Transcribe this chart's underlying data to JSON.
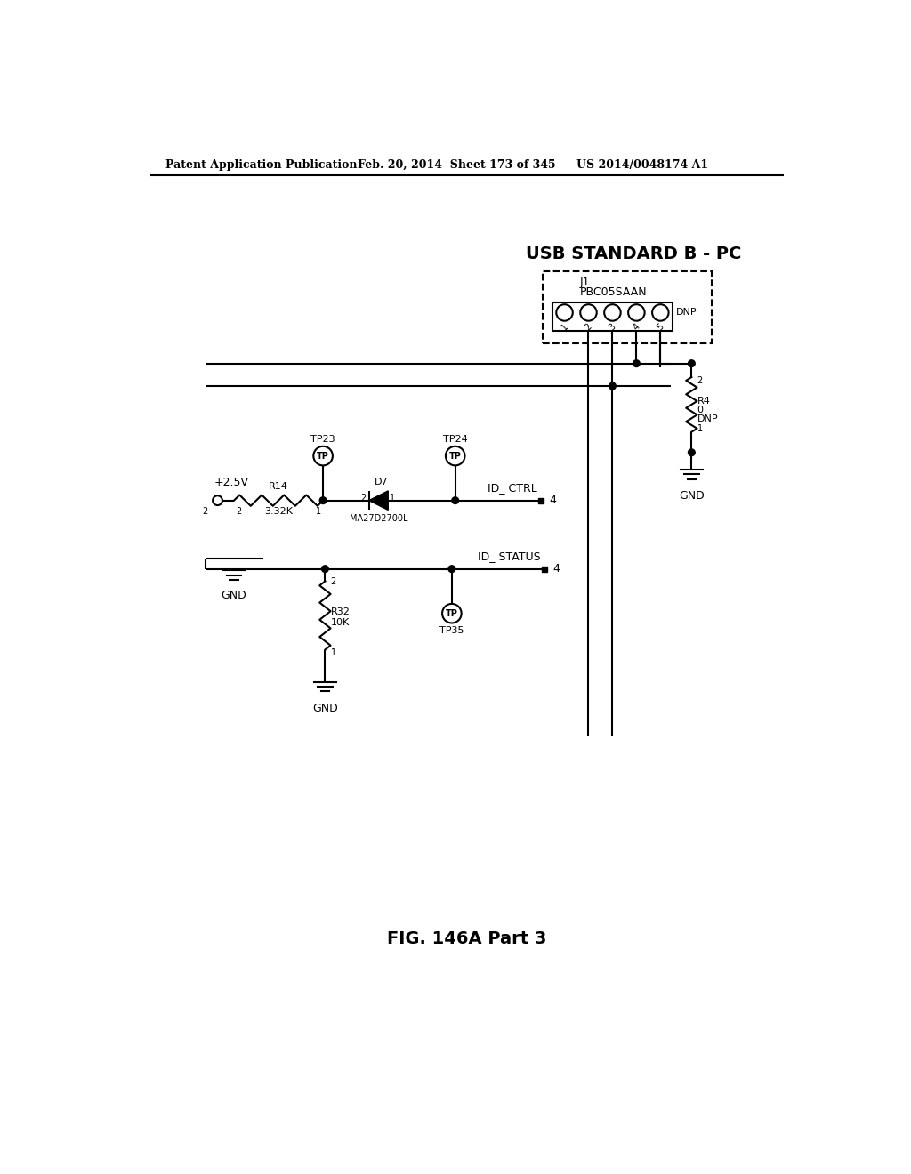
{
  "header_left": "Patent Application Publication",
  "header_middle": "Feb. 20, 2014  Sheet 173 of 345",
  "header_right": "US 2014/0048174 A1",
  "title_usb": "USB STANDARD B - PC",
  "j1_label": "J1",
  "j1_part": "PBC05SAAN",
  "j1_dnp": "DNP",
  "r4_label": "R4",
  "r4_value": "0",
  "r4_dnp": "DNP",
  "r14_label": "R14",
  "r14_value": "3.32K",
  "r32_label": "R32",
  "r32_value": "10K",
  "d7_label": "D7",
  "d7_part": "MA27D2700L",
  "tp23_label": "TP23",
  "tp24_label": "TP24",
  "tp35_label": "TP35",
  "vcc_label": "+2.5V",
  "id_ctrl_label": "ID_ CTRL",
  "id_status_label": "ID_ STATUS",
  "fig_label": "FIG. 146A Part 3",
  "bg_color": "#ffffff"
}
